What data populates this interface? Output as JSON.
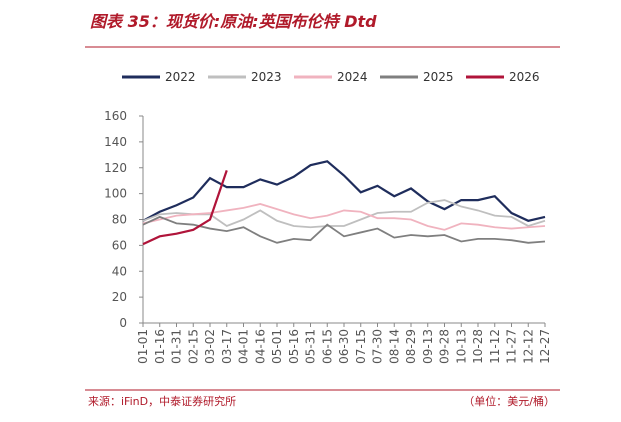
{
  "chart_data": {
    "type": "line",
    "title": "图表 35：现货价:原油:英国布伦特 Dtd",
    "source": "来源：iFinD，中泰证券研究所",
    "unit": "（单位：美元/桶）",
    "categories": [
      "01-01",
      "01-16",
      "01-31",
      "02-15",
      "03-02",
      "03-17",
      "04-01",
      "04-16",
      "05-01",
      "05-16",
      "05-31",
      "06-15",
      "06-30",
      "07-15",
      "07-30",
      "08-14",
      "08-29",
      "09-13",
      "09-28",
      "10-13",
      "10-28",
      "11-12",
      "11-27",
      "12-12",
      "12-27"
    ],
    "series": [
      {
        "name": "2022",
        "color": "#1f2d5c",
        "values": [
          79,
          86,
          91,
          97,
          112,
          105,
          105,
          111,
          107,
          113,
          122,
          125,
          114,
          101,
          106,
          98,
          104,
          94,
          88,
          95,
          95,
          98,
          85,
          79,
          82
        ]
      },
      {
        "name": "2023",
        "color": "#bfbfbf",
        "values": [
          79,
          84,
          85,
          84,
          84,
          75,
          80,
          87,
          79,
          75,
          74,
          75,
          75,
          80,
          85,
          86,
          86,
          93,
          95,
          90,
          87,
          83,
          82,
          75,
          79
        ]
      },
      {
        "name": "2024",
        "color": "#f0b3bf",
        "values": [
          77,
          80,
          83,
          84,
          85,
          87,
          89,
          92,
          88,
          84,
          81,
          83,
          87,
          86,
          81,
          81,
          80,
          75,
          72,
          77,
          76,
          74,
          73,
          74,
          75
        ]
      },
      {
        "name": "2025",
        "color": "#7f7f7f",
        "values": [
          76,
          82,
          77,
          76,
          73,
          71,
          74,
          67,
          62,
          65,
          64,
          76,
          67,
          70,
          73,
          66,
          68,
          67,
          68,
          63,
          65,
          65,
          64,
          62,
          63
        ]
      },
      {
        "name": "2026",
        "color": "#b0143a",
        "values": [
          61,
          67,
          69,
          72,
          80,
          118,
          null,
          null,
          null,
          null,
          null,
          null,
          null,
          null,
          null,
          null,
          null,
          null,
          null,
          null,
          null,
          null,
          null,
          null,
          null
        ]
      }
    ],
    "ylim": [
      0,
      160
    ],
    "yticks": [
      0,
      20,
      40,
      60,
      80,
      100,
      120,
      140,
      160
    ]
  }
}
